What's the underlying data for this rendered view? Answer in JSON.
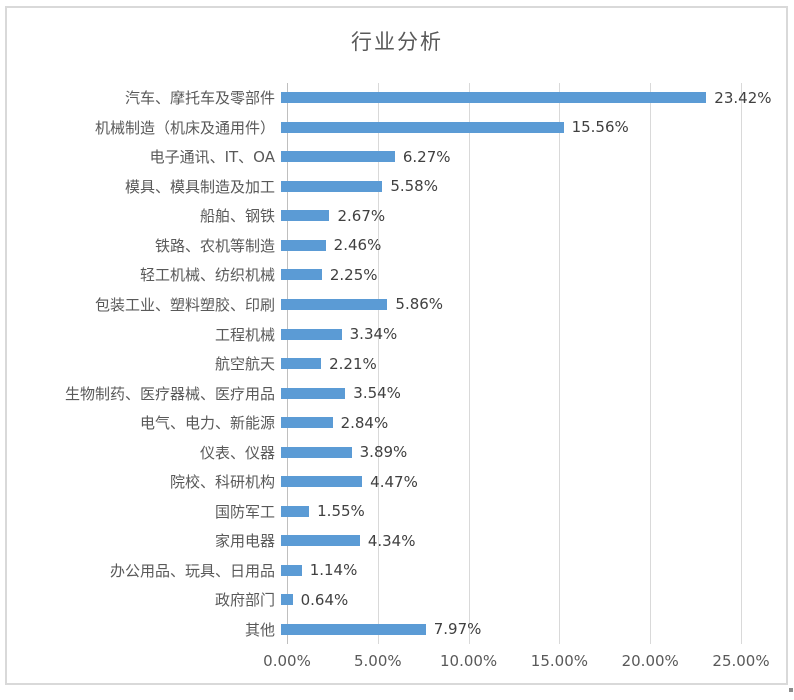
{
  "chart_data": {
    "type": "bar",
    "orientation": "horizontal",
    "title": "行业分析",
    "categories": [
      "汽车、摩托车及零部件",
      "机械制造（机床及通用件）",
      "电子通讯、IT、OA",
      "模具、模具制造及加工",
      "船舶、钢铁",
      "铁路、农机等制造",
      "轻工机械、纺织机械",
      "包装工业、塑料塑胶、印刷",
      "工程机械",
      "航空航天",
      "生物制药、医疗器械、医疗用品",
      "电气、电力、新能源",
      "仪表、仪器",
      "院校、科研机构",
      "国防军工",
      "家用电器",
      "办公用品、玩具、日用品",
      "政府部门",
      "其他"
    ],
    "values": [
      23.42,
      15.56,
      6.27,
      5.58,
      2.67,
      2.46,
      2.25,
      5.86,
      3.34,
      2.21,
      3.54,
      2.84,
      3.89,
      4.47,
      1.55,
      4.34,
      1.14,
      0.64,
      7.97
    ],
    "value_labels": [
      "23.42%",
      "15.56%",
      "6.27%",
      "5.58%",
      "2.67%",
      "2.46%",
      "2.25%",
      "5.86%",
      "3.34%",
      "2.21%",
      "3.54%",
      "2.84%",
      "3.89%",
      "4.47%",
      "1.55%",
      "4.34%",
      "1.14%",
      "0.64%",
      "7.97%"
    ],
    "x_ticks": [
      "0.00%",
      "5.00%",
      "10.00%",
      "15.00%",
      "20.00%",
      "25.00%"
    ],
    "x_tick_values": [
      0,
      5,
      10,
      15,
      20,
      25
    ],
    "xlim": [
      0,
      25
    ],
    "xlabel": "",
    "ylabel": "",
    "grid": "vertical",
    "legend": "none",
    "bar_color": "#5b9bd5",
    "gridline_color": "#d9d9d9",
    "title_color": "#595959",
    "axis_text_color": "#595959",
    "data_label_color": "#404040",
    "frame_border_color": "#d9d9d9"
  }
}
